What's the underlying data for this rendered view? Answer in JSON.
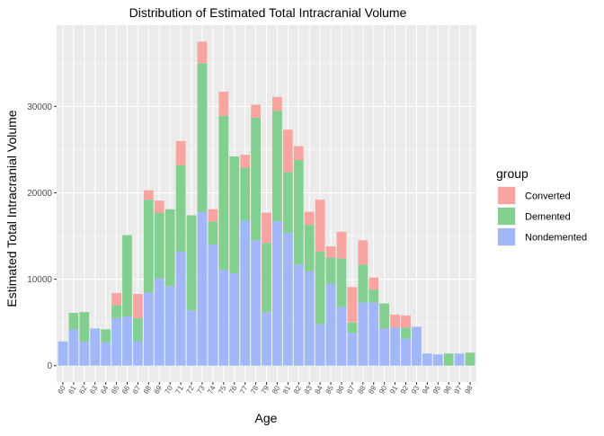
{
  "chart_data": {
    "type": "bar",
    "stacked": true,
    "title": "Distribution of Estimated Total Intracranial Volume",
    "xlabel": "Age",
    "ylabel": "Estimated Total Intracranial Volume",
    "ylim": [
      -1900,
      39400
    ],
    "yticks": [
      0,
      10000,
      20000,
      30000
    ],
    "ytick_labels": [
      "0",
      "10000",
      "20000",
      "30000"
    ],
    "grid": true,
    "legend": {
      "title": "group",
      "position": "right"
    },
    "colors": {
      "Converted": "#f8a5a2",
      "Demented": "#82cf8f",
      "Nondemented": "#a1b7f8",
      "panel": "#ebebeb",
      "grid": "#ffffff"
    },
    "categories": [
      "60",
      "61",
      "62",
      "63",
      "64",
      "65",
      "66",
      "67",
      "68",
      "69",
      "70",
      "71",
      "72",
      "73",
      "74",
      "75",
      "76",
      "77",
      "78",
      "79",
      "80",
      "81",
      "82",
      "83",
      "84",
      "85",
      "86",
      "87",
      "88",
      "89",
      "90",
      "91",
      "92",
      "93",
      "94",
      "95",
      "96",
      "97",
      "98"
    ],
    "series": [
      {
        "name": "Nondemented",
        "values": [
          2800,
          4200,
          2800,
          4300,
          2700,
          5500,
          5700,
          2800,
          8500,
          10100,
          9200,
          13200,
          6400,
          17800,
          14000,
          11100,
          10700,
          16800,
          14500,
          6200,
          16700,
          15400,
          11700,
          10900,
          4800,
          9500,
          6800,
          3800,
          7300,
          7300,
          4300,
          4400,
          3100,
          4500,
          1400,
          1300,
          0,
          1400,
          0
        ]
      },
      {
        "name": "Demented",
        "values": [
          0,
          1900,
          3400,
          0,
          1500,
          1500,
          9400,
          2700,
          10700,
          7600,
          8900,
          10000,
          11000,
          17200,
          2700,
          17800,
          13500,
          6100,
          14200,
          8000,
          12800,
          7000,
          12100,
          5400,
          8400,
          3000,
          5600,
          1200,
          4400,
          1500,
          2900,
          0,
          1300,
          0,
          0,
          0,
          1400,
          0,
          1500
        ]
      },
      {
        "name": "Converted",
        "values": [
          0,
          0,
          0,
          0,
          0,
          1400,
          0,
          2800,
          1100,
          1400,
          0,
          2800,
          0,
          2500,
          1400,
          2800,
          0,
          1500,
          1500,
          3500,
          1600,
          4900,
          1600,
          1500,
          6000,
          1300,
          3100,
          4100,
          2800,
          1400,
          0,
          1500,
          1400,
          0,
          0,
          0,
          0,
          0,
          0
        ]
      }
    ]
  }
}
